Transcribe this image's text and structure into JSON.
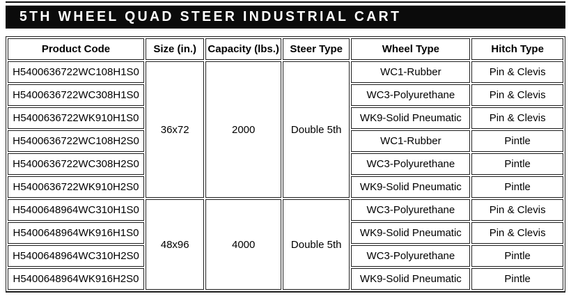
{
  "title": "5TH WHEEL QUAD STEER INDUSTRIAL CART",
  "colors": {
    "title_bg": "#0b0b0b",
    "title_text": "#ffffff",
    "table_border": "#1e1e1e",
    "body_text": "#000000",
    "background": "#ffffff"
  },
  "table": {
    "headers": [
      "Product Code",
      "Size (in.)",
      "Capacity (lbs.)",
      "Steer Type",
      "Wheel Type",
      "Hitch Type"
    ],
    "groups": [
      {
        "size": "36x72",
        "capacity": "2000",
        "steer_type": "Double 5th",
        "rows": [
          {
            "product_code": "H5400636722WC108H1S0",
            "wheel_type": "WC1-Rubber",
            "hitch_type": "Pin & Clevis"
          },
          {
            "product_code": "H5400636722WC308H1S0",
            "wheel_type": "WC3-Polyurethane",
            "hitch_type": "Pin & Clevis"
          },
          {
            "product_code": "H5400636722WK910H1S0",
            "wheel_type": "WK9-Solid Pneumatic",
            "hitch_type": "Pin & Clevis"
          },
          {
            "product_code": "H5400636722WC108H2S0",
            "wheel_type": "WC1-Rubber",
            "hitch_type": "Pintle"
          },
          {
            "product_code": "H5400636722WC308H2S0",
            "wheel_type": "WC3-Polyurethane",
            "hitch_type": "Pintle"
          },
          {
            "product_code": "H5400636722WK910H2S0",
            "wheel_type": "WK9-Solid Pneumatic",
            "hitch_type": "Pintle"
          }
        ]
      },
      {
        "size": "48x96",
        "capacity": "4000",
        "steer_type": "Double 5th",
        "rows": [
          {
            "product_code": "H5400648964WC310H1S0",
            "wheel_type": "WC3-Polyurethane",
            "hitch_type": "Pin & Clevis"
          },
          {
            "product_code": "H5400648964WK916H1S0",
            "wheel_type": "WK9-Solid Pneumatic",
            "hitch_type": "Pin & Clevis"
          },
          {
            "product_code": "H5400648964WC310H2S0",
            "wheel_type": "WC3-Polyurethane",
            "hitch_type": "Pintle"
          },
          {
            "product_code": "H5400648964WK916H2S0",
            "wheel_type": "WK9-Solid Pneumatic",
            "hitch_type": "Pintle"
          }
        ]
      }
    ]
  }
}
